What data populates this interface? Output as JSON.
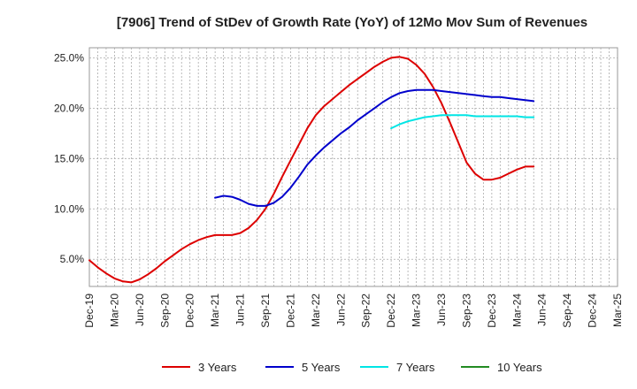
{
  "chart_data": {
    "type": "line",
    "title": "[7906]  Trend of StDev of Growth Rate (YoY) of 12Mo Mov Sum of Revenues",
    "xlabel": "",
    "ylabel": "",
    "x_ticks": [
      "Dec-19",
      "Mar-20",
      "Jun-20",
      "Sep-20",
      "Dec-20",
      "Mar-21",
      "Jun-21",
      "Sep-21",
      "Dec-21",
      "Mar-22",
      "Jun-22",
      "Sep-22",
      "Dec-22",
      "Mar-23",
      "Jun-23",
      "Sep-23",
      "Dec-23",
      "Mar-24",
      "Jun-24",
      "Sep-24",
      "Dec-24",
      "Mar-25"
    ],
    "y_ticks": [
      "5.0%",
      "10.0%",
      "15.0%",
      "20.0%",
      "25.0%"
    ],
    "y_tick_values": [
      5,
      10,
      15,
      20,
      25
    ],
    "ylim": [
      2.3,
      26.0
    ],
    "grid": true,
    "legend_position": "bottom",
    "series": [
      {
        "name": "3 Years",
        "color": "#dd0000",
        "start_index": 0,
        "values": [
          4.9,
          4.2,
          3.6,
          3.1,
          2.8,
          2.7,
          3.0,
          3.5,
          4.1,
          4.8,
          5.4,
          6.0,
          6.5,
          6.9,
          7.2,
          7.4,
          7.4,
          7.4,
          7.6,
          8.1,
          8.9,
          10.0,
          11.5,
          13.2,
          14.8,
          16.4,
          18.0,
          19.3,
          20.2,
          20.9,
          21.6,
          22.3,
          22.9,
          23.5,
          24.1,
          24.6,
          25.0,
          25.1,
          24.9,
          24.3,
          23.4,
          22.1,
          20.5,
          18.6,
          16.6,
          14.6,
          13.5,
          12.9,
          12.9,
          13.1,
          13.5,
          13.9,
          14.2,
          14.2
        ]
      },
      {
        "name": "5 Years",
        "color": "#0000cc",
        "start_index": 15,
        "values": [
          11.1,
          11.3,
          11.2,
          10.9,
          10.5,
          10.3,
          10.3,
          10.6,
          11.2,
          12.1,
          13.2,
          14.4,
          15.3,
          16.1,
          16.8,
          17.5,
          18.1,
          18.8,
          19.4,
          20.0,
          20.6,
          21.1,
          21.5,
          21.7,
          21.8,
          21.8,
          21.8,
          21.7,
          21.6,
          21.5,
          21.4,
          21.3,
          21.2,
          21.1,
          21.1,
          21.0,
          20.9,
          20.8,
          20.7
        ]
      },
      {
        "name": "7 Years",
        "color": "#00e5e5",
        "start_index": 36,
        "values": [
          18.0,
          18.4,
          18.7,
          18.9,
          19.1,
          19.2,
          19.3,
          19.3,
          19.3,
          19.3,
          19.2,
          19.2,
          19.2,
          19.2,
          19.2,
          19.2,
          19.1,
          19.1
        ]
      },
      {
        "name": "10 Years",
        "color": "#228b22",
        "start_index": 0,
        "values": []
      }
    ]
  }
}
